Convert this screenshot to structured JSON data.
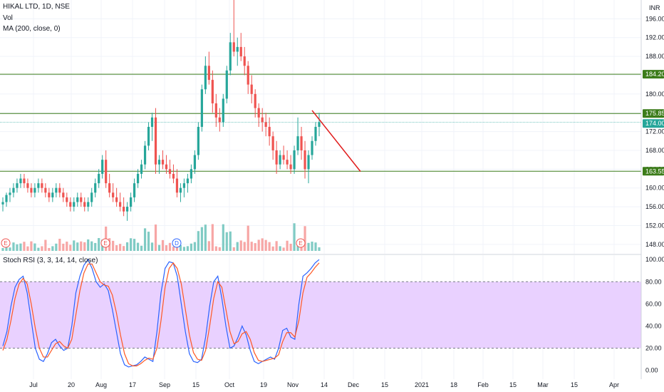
{
  "header": {
    "symbol_line": "HIKAL LTD, 1D, NSE",
    "vol_label": "Vol",
    "ma_label": "MA (200, close, 0)",
    "stoch_label": "Stoch RSI (3, 3, 14, 14, close)",
    "currency": "INR"
  },
  "chart_data": [
    {
      "type": "candlestick",
      "name": "price",
      "ylim": [
        146,
        200
      ],
      "y_ticks": [
        148,
        152,
        156,
        160,
        164,
        168,
        172,
        176,
        180,
        184,
        188,
        192,
        196
      ],
      "y_tick_labels": [
        "148.00",
        "152.00",
        "156.00",
        "160.00",
        "164.00",
        "168.00",
        "172.00",
        "176.00",
        "180.00",
        "184.00",
        "188.00",
        "192.00",
        "196.00"
      ],
      "x_labels": [
        "Jul",
        "20",
        "Aug",
        "17",
        "Sep",
        "15",
        "Oct",
        "19",
        "Nov",
        "14",
        "Dec",
        "15",
        "2021",
        "18",
        "Feb",
        "15",
        "Mar",
        "15",
        "Apr"
      ],
      "ohlc": [
        [
          156.5,
          158,
          155,
          157
        ],
        [
          157,
          159,
          156,
          158.5
        ],
        [
          158.5,
          160,
          157,
          159
        ],
        [
          159,
          161,
          158,
          160
        ],
        [
          160,
          162,
          159,
          161
        ],
        [
          161,
          163,
          160,
          162
        ],
        [
          162,
          163,
          160,
          161
        ],
        [
          161,
          162,
          159,
          160
        ],
        [
          160,
          161,
          158,
          159
        ],
        [
          159,
          161,
          158,
          160
        ],
        [
          160,
          162,
          159,
          161
        ],
        [
          161,
          162,
          159,
          160
        ],
        [
          160,
          161,
          158,
          159
        ],
        [
          159,
          160,
          157,
          158
        ],
        [
          158,
          160,
          157,
          159
        ],
        [
          159,
          161,
          158,
          160
        ],
        [
          160,
          161,
          158,
          159
        ],
        [
          159,
          160,
          157,
          158
        ],
        [
          158,
          159,
          156,
          157
        ],
        [
          157,
          158,
          155,
          156
        ],
        [
          156,
          158,
          155,
          157
        ],
        [
          157,
          159,
          156,
          158
        ],
        [
          158,
          159,
          156,
          157
        ],
        [
          157,
          158,
          155,
          156
        ],
        [
          156,
          158,
          155,
          157
        ],
        [
          157,
          160,
          156,
          159
        ],
        [
          159,
          162,
          158,
          161
        ],
        [
          161,
          164,
          160,
          163
        ],
        [
          163,
          167,
          162,
          166
        ],
        [
          166,
          168,
          160,
          161
        ],
        [
          161,
          163,
          158,
          159
        ],
        [
          159,
          161,
          157,
          158
        ],
        [
          158,
          160,
          156,
          157
        ],
        [
          157,
          159,
          155,
          156
        ],
        [
          156,
          158,
          154,
          155
        ],
        [
          155,
          157,
          153,
          156
        ],
        [
          156,
          159,
          155,
          158
        ],
        [
          158,
          162,
          157,
          161
        ],
        [
          161,
          164,
          160,
          163
        ],
        [
          163,
          166,
          162,
          165
        ],
        [
          165,
          170,
          164,
          169
        ],
        [
          169,
          174,
          168,
          173
        ],
        [
          173,
          176,
          170,
          175
        ],
        [
          175,
          177,
          163,
          165
        ],
        [
          165,
          167,
          163,
          166
        ],
        [
          166,
          168,
          164,
          165
        ],
        [
          165,
          167,
          163,
          164
        ],
        [
          164,
          166,
          162,
          163
        ],
        [
          163,
          165,
          161,
          162
        ],
        [
          162,
          164,
          158,
          159
        ],
        [
          159,
          161,
          157,
          160
        ],
        [
          160,
          162,
          158,
          161
        ],
        [
          161,
          163,
          159,
          162
        ],
        [
          162,
          165,
          161,
          164
        ],
        [
          164,
          168,
          163,
          167
        ],
        [
          167,
          174,
          166,
          173
        ],
        [
          173,
          182,
          172,
          181
        ],
        [
          181,
          188,
          180,
          186
        ],
        [
          186,
          189,
          182,
          183
        ],
        [
          183,
          185,
          176,
          178
        ],
        [
          178,
          180,
          173,
          175
        ],
        [
          175,
          177,
          172,
          174
        ],
        [
          174,
          180,
          173,
          179
        ],
        [
          179,
          186,
          178,
          185
        ],
        [
          185,
          193,
          184,
          191
        ],
        [
          191,
          200,
          188,
          189
        ],
        [
          189,
          192,
          186,
          190
        ],
        [
          190,
          193,
          187,
          188
        ],
        [
          188,
          190,
          184,
          186
        ],
        [
          186,
          187,
          180,
          182
        ],
        [
          182,
          184,
          178,
          180
        ],
        [
          180,
          181,
          175,
          177
        ],
        [
          177,
          178,
          173,
          175
        ],
        [
          175,
          177,
          172,
          174
        ],
        [
          174,
          176,
          171,
          173
        ],
        [
          173,
          175,
          169,
          171
        ],
        [
          171,
          172,
          166,
          168
        ],
        [
          168,
          170,
          163,
          165
        ],
        [
          165,
          168,
          164,
          167
        ],
        [
          167,
          169,
          165,
          166
        ],
        [
          166,
          168,
          164,
          165
        ],
        [
          165,
          167,
          163,
          164
        ],
        [
          164,
          169,
          163,
          168
        ],
        [
          168,
          175,
          167,
          171
        ],
        [
          171,
          173,
          166,
          168
        ],
        [
          168,
          170,
          162,
          164
        ],
        [
          164,
          168,
          161,
          167
        ],
        [
          167,
          171,
          166,
          170
        ],
        [
          170,
          174,
          169,
          173
        ],
        [
          173,
          176,
          171,
          174
        ]
      ]
    },
    {
      "type": "bar",
      "name": "Vol",
      "event_markers": [
        "E",
        "E",
        "D",
        "E"
      ]
    },
    {
      "type": "line",
      "name": "Stoch RSI",
      "ylim": [
        -8,
        104
      ],
      "y_ticks": [
        0,
        20,
        40,
        60,
        80,
        100
      ],
      "y_tick_labels": [
        "0.00",
        "20.00",
        "40.00",
        "60.00",
        "80.00",
        "100.00"
      ],
      "band": [
        20,
        80
      ],
      "series": [
        {
          "name": "K",
          "values": [
            22,
            35,
            58,
            75,
            82,
            85,
            70,
            45,
            20,
            10,
            8,
            15,
            25,
            28,
            22,
            18,
            20,
            40,
            70,
            85,
            95,
            100,
            92,
            80,
            75,
            78,
            72,
            55,
            35,
            15,
            5,
            3,
            4,
            5,
            8,
            12,
            10,
            8,
            35,
            70,
            92,
            98,
            97,
            85,
            60,
            35,
            15,
            8,
            7,
            10,
            30,
            58,
            80,
            85,
            65,
            40,
            20,
            22,
            30,
            40,
            32,
            18,
            8,
            6,
            8,
            10,
            12,
            10,
            20,
            36,
            38,
            30,
            28,
            60,
            85,
            88,
            92,
            97,
            100
          ]
        },
        {
          "name": "D",
          "values": [
            18,
            28,
            45,
            65,
            78,
            83,
            78,
            60,
            38,
            20,
            12,
            12,
            18,
            24,
            26,
            22,
            20,
            28,
            50,
            72,
            88,
            96,
            96,
            88,
            80,
            77,
            76,
            68,
            52,
            32,
            15,
            6,
            4,
            4,
            6,
            9,
            11,
            10,
            20,
            45,
            75,
            92,
            97,
            92,
            78,
            55,
            32,
            16,
            10,
            9,
            18,
            40,
            65,
            80,
            75,
            55,
            35,
            24,
            26,
            33,
            35,
            28,
            16,
            9,
            8,
            9,
            10,
            11,
            14,
            26,
            34,
            34,
            30,
            45,
            70,
            84,
            88,
            93,
            97
          ]
        }
      ]
    }
  ],
  "badges": {
    "top": "196.00",
    "r184": "184.20",
    "r175": "175.85",
    "r174": "174.00",
    "r163": "163.55"
  },
  "colors": {
    "up": "#26a69a",
    "down": "#ef5350",
    "vol_up": "#80cbc4",
    "vol_down": "#f7a6a5",
    "hline": "#3c7c1a",
    "price_line": "#26a69a",
    "trend": "#e01b1b",
    "band_fill": "#e9d1ff",
    "stoch_k": "#2962ff",
    "stoch_d": "#ff5722"
  }
}
